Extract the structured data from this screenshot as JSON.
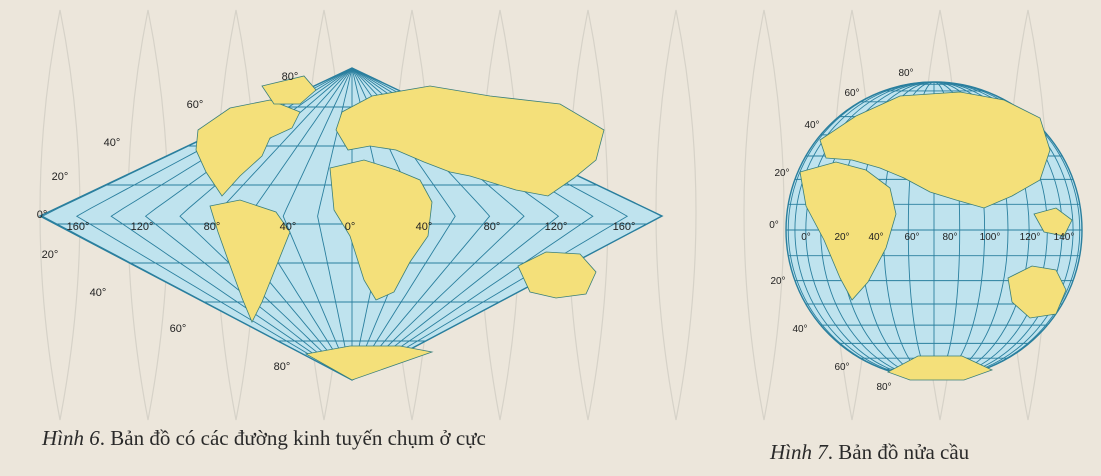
{
  "background_color": "#ece6db",
  "ocean_color": "#bfe3ee",
  "grid_color": "#2a7f9e",
  "land_color": "#f4e07a",
  "figure6": {
    "fig_label": "Hình 6",
    "caption_text": ". Bản đồ có các đường kinh tuyến chụm ở cực",
    "lat_labels": [
      "80°",
      "60°",
      "40°",
      "20°",
      "0°",
      "20°",
      "40°",
      "60°",
      "80°"
    ],
    "lon_labels": [
      "160°",
      "120°",
      "80°",
      "40°",
      "0°",
      "40°",
      "80°",
      "120°",
      "160°"
    ]
  },
  "figure7": {
    "fig_label": "Hình 7",
    "caption_text": ". Bản đồ nửa cầu",
    "lat_labels": [
      "80°",
      "60°",
      "40°",
      "20°",
      "0°",
      "20°",
      "40°",
      "60°",
      "80°"
    ],
    "lon_labels": [
      "0°",
      "20°",
      "40°",
      "60°",
      "80°",
      "100°",
      "120°",
      "140°"
    ]
  }
}
